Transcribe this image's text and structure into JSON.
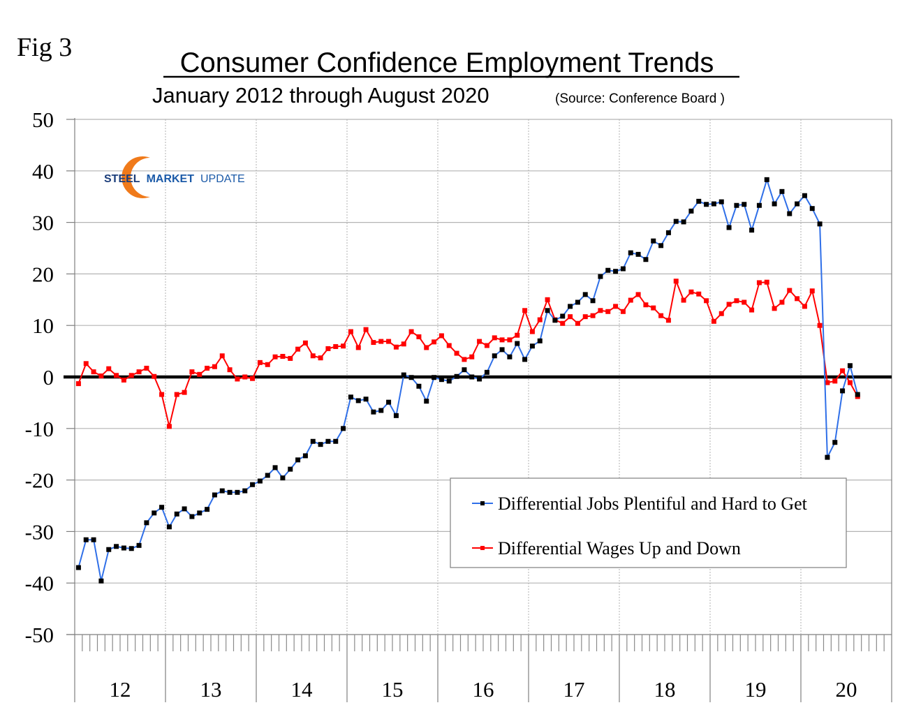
{
  "figure_label": "Fig 3",
  "logo": {
    "word1": "STEEL",
    "word2": "MARKET",
    "word3": "UPDATE"
  },
  "colors": {
    "jobs_line": "#2f6fe8",
    "jobs_marker": "#000000",
    "wages_line": "#ff0000",
    "wages_marker": "#ff0000",
    "zero_line": "#000000",
    "grid": "#b4b4b4",
    "logo_orange": "#f07a1a",
    "logo_blue": "#1b3d7a"
  },
  "chart_data": {
    "type": "line",
    "title": "Consumer Confidence Employment Trends",
    "subtitle": "January 2012 through August 2020",
    "source": "(Source: Conference Board )",
    "xlabel": "",
    "ylabel": "",
    "ylim": [
      -50,
      50
    ],
    "yticks": [
      50,
      40,
      30,
      20,
      10,
      0,
      -10,
      -20,
      -30,
      -40,
      -50
    ],
    "ytick_labels": [
      "50",
      "40",
      "30",
      "20",
      "10",
      "0",
      "-10",
      "-20",
      "-30",
      "-40",
      "-50"
    ],
    "x_years": [
      "12",
      "13",
      "14",
      "15",
      "16",
      "17",
      "18",
      "19",
      "20"
    ],
    "x_start": "2012-01",
    "x_end": "2020-08",
    "months_per_year": 12,
    "grid": true,
    "legend_position": "bottom-right",
    "series": [
      {
        "name": "Differential Jobs Plentiful and Hard to Get",
        "color_key": "jobs_line",
        "values": [
          -37.0,
          -31.6,
          -31.6,
          -39.6,
          -33.5,
          -32.9,
          -33.2,
          -33.3,
          -32.7,
          -28.3,
          -26.4,
          -25.3,
          -29.1,
          -26.6,
          -25.6,
          -27.1,
          -26.4,
          -25.7,
          -22.9,
          -22.1,
          -22.4,
          -22.4,
          -22.1,
          -20.9,
          -20.2,
          -19.1,
          -17.6,
          -19.6,
          -17.9,
          -16.1,
          -15.3,
          -12.5,
          -13.1,
          -12.5,
          -12.5,
          -10.0,
          -3.9,
          -4.6,
          -4.3,
          -6.8,
          -6.5,
          -4.9,
          -7.5,
          0.4,
          -0.1,
          -1.8,
          -4.7,
          -0.1,
          -0.5,
          -0.8,
          0.1,
          1.4,
          0.0,
          -0.4,
          0.9,
          4.1,
          5.3,
          3.9,
          6.5,
          3.4,
          6.0,
          7.0,
          12.9,
          11.0,
          11.8,
          13.7,
          14.5,
          16.0,
          14.8,
          19.5,
          20.7,
          20.5,
          21.0,
          24.1,
          23.8,
          22.8,
          26.4,
          25.5,
          28.0,
          30.2,
          30.1,
          32.2,
          34.1,
          33.5,
          33.6,
          34.0,
          29.0,
          33.3,
          33.5,
          28.5,
          33.3,
          38.3,
          33.6,
          36.0,
          31.7,
          33.6,
          35.2,
          32.7,
          29.7,
          -15.6,
          -12.7,
          -2.7,
          2.2,
          -3.4
        ]
      },
      {
        "name": "Differential Wages Up and Down",
        "color_key": "wages_line",
        "values": [
          -1.3,
          2.6,
          1.0,
          0.2,
          1.6,
          0.3,
          -0.6,
          0.3,
          1.0,
          1.7,
          0.1,
          -3.4,
          -9.6,
          -3.4,
          -3.0,
          1.0,
          0.5,
          1.7,
          2.0,
          4.1,
          1.4,
          -0.4,
          0.0,
          -0.3,
          2.8,
          2.4,
          3.9,
          4.0,
          3.6,
          5.4,
          6.6,
          4.1,
          3.7,
          5.5,
          5.9,
          6.0,
          8.8,
          5.7,
          9.2,
          6.7,
          6.9,
          6.9,
          5.8,
          6.4,
          8.8,
          7.8,
          5.7,
          6.8,
          8.0,
          6.1,
          4.6,
          3.4,
          3.9,
          6.9,
          6.1,
          7.6,
          7.2,
          7.2,
          8.1,
          12.9,
          8.8,
          11.1,
          15.0,
          11.1,
          10.4,
          11.7,
          10.4,
          11.7,
          11.9,
          12.9,
          12.7,
          13.7,
          12.7,
          14.9,
          16.0,
          14.0,
          13.4,
          11.9,
          11.0,
          18.6,
          14.9,
          16.5,
          16.1,
          14.8,
          10.8,
          12.3,
          14.1,
          14.8,
          14.5,
          13.0,
          18.3,
          18.4,
          13.3,
          14.5,
          16.8,
          15.2,
          13.7,
          16.7,
          10.0,
          -1.1,
          -0.8,
          1.2,
          -1.1,
          -3.8
        ]
      }
    ]
  }
}
